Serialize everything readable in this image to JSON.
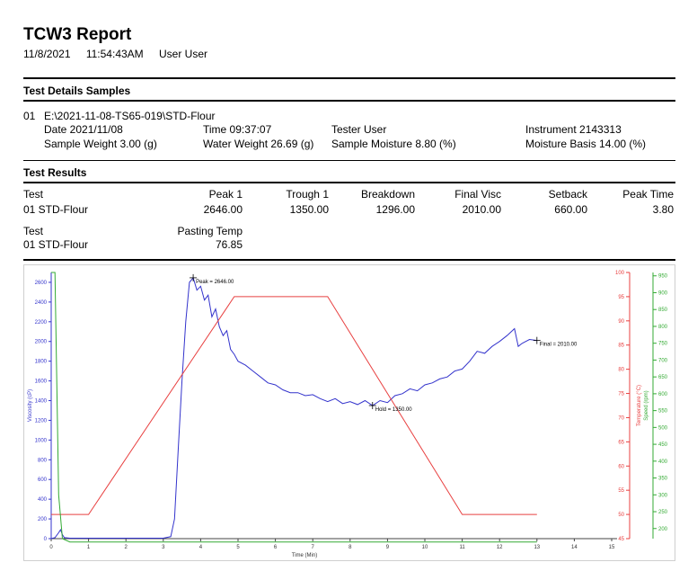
{
  "report": {
    "title": "TCW3 Report",
    "date": "11/8/2021",
    "time": "11:54:43AM",
    "user": "User User"
  },
  "details": {
    "heading": "Test Details Samples",
    "index": "01",
    "path": "E:\\2021-11-08-TS65-019\\STD-Flour",
    "date": "Date 2021/11/08",
    "time": "Time 09:37:07",
    "tester": "Tester User",
    "instrument": "Instrument 2143313",
    "sample_weight": "Sample Weight 3.00 (g)",
    "water_weight": "Water Weight 26.69 (g)",
    "sample_moisture": "Sample Moisture 8.80 (%)",
    "moisture_basis": "Moisture Basis 14.00 (%)"
  },
  "results": {
    "heading": "Test Results",
    "headers": [
      "Test",
      "Peak 1",
      "Trough 1",
      "Breakdown",
      "Final Visc",
      "Setback",
      "Peak Time"
    ],
    "row": [
      "01  STD-Flour",
      "2646.00",
      "1350.00",
      "1296.00",
      "2010.00",
      "660.00",
      "3.80"
    ],
    "headers2": [
      "Test",
      "Pasting Temp"
    ],
    "row2": [
      "01  STD-Flour",
      "76.85"
    ]
  },
  "chart_data": {
    "type": "line",
    "xlabel": "Time (Min)",
    "ylabel_left": "Viscosity (cP)",
    "ylabel_right1": "Temperature (°C)",
    "ylabel_right2": "Speed (rpm)",
    "xlim": [
      0,
      15
    ],
    "ylim_left": [
      0,
      2700
    ],
    "ylim_temp": [
      45,
      100
    ],
    "ylim_speed": [
      170,
      960
    ],
    "x_ticks": [
      "0",
      "1",
      "2",
      "3",
      "4",
      "5",
      "6",
      "7",
      "8",
      "9",
      "10",
      "11",
      "12",
      "13",
      "14",
      "15"
    ],
    "y_left_ticks": [
      "0",
      "200",
      "400",
      "600",
      "800",
      "1000",
      "1200",
      "1400",
      "1600",
      "1800",
      "2000",
      "2200",
      "2400",
      "2600"
    ],
    "y_temp_ticks": [
      "45",
      "50",
      "55",
      "60",
      "65",
      "70",
      "75",
      "80",
      "85",
      "90",
      "95",
      "100"
    ],
    "y_speed_ticks": [
      "200",
      "250",
      "300",
      "350",
      "400",
      "450",
      "500",
      "550",
      "600",
      "650",
      "700",
      "750",
      "800",
      "850",
      "900",
      "950"
    ],
    "annotations": [
      {
        "text": "Peak = 2646.00",
        "x": 3.8,
        "y": 2646
      },
      {
        "text": "Hold = 1350.00",
        "x": 8.6,
        "y": 1350
      },
      {
        "text": "Final = 2010.00",
        "x": 13.0,
        "y": 2010
      }
    ],
    "series": [
      {
        "name": "Viscosity",
        "axis": "left",
        "color": "#3333cc",
        "x": [
          0,
          0.1,
          0.2,
          0.25,
          0.3,
          0.35,
          0.5,
          1,
          2,
          3,
          3.2,
          3.3,
          3.4,
          3.5,
          3.6,
          3.7,
          3.8,
          3.9,
          4.0,
          4.1,
          4.2,
          4.3,
          4.4,
          4.5,
          4.6,
          4.7,
          4.8,
          4.9,
          5.0,
          5.2,
          5.4,
          5.6,
          5.8,
          6.0,
          6.2,
          6.4,
          6.6,
          6.8,
          7.0,
          7.2,
          7.4,
          7.6,
          7.8,
          8.0,
          8.2,
          8.4,
          8.6,
          8.8,
          9.0,
          9.2,
          9.4,
          9.6,
          9.8,
          10.0,
          10.2,
          10.4,
          10.6,
          10.8,
          11.0,
          11.2,
          11.4,
          11.6,
          11.8,
          12.0,
          12.2,
          12.4,
          12.5,
          12.6,
          12.8,
          13.0
        ],
        "y": [
          0,
          10,
          60,
          90,
          40,
          10,
          5,
          5,
          5,
          5,
          20,
          200,
          900,
          1600,
          2200,
          2600,
          2646,
          2520,
          2560,
          2420,
          2470,
          2250,
          2330,
          2150,
          2060,
          2110,
          1920,
          1870,
          1800,
          1760,
          1700,
          1640,
          1580,
          1560,
          1510,
          1480,
          1480,
          1450,
          1460,
          1420,
          1390,
          1420,
          1370,
          1390,
          1360,
          1400,
          1350,
          1400,
          1380,
          1450,
          1470,
          1520,
          1500,
          1560,
          1580,
          1620,
          1640,
          1700,
          1720,
          1800,
          1900,
          1880,
          1950,
          2000,
          2060,
          2130,
          1950,
          1980,
          2020,
          2010
        ]
      },
      {
        "name": "Temperature",
        "axis": "temp",
        "color": "#e84040",
        "x": [
          0,
          0.2,
          0.5,
          1.0,
          4.9,
          5.0,
          7.4,
          11.0,
          13.0
        ],
        "y": [
          50,
          50,
          50,
          50,
          95,
          95,
          95,
          50,
          50
        ]
      },
      {
        "name": "Speed",
        "axis": "speed",
        "color": "#33aa33",
        "x": [
          0,
          0.1,
          0.2,
          0.3,
          0.5,
          13.0
        ],
        "y": [
          960,
          960,
          300,
          170,
          160,
          160
        ]
      }
    ]
  }
}
